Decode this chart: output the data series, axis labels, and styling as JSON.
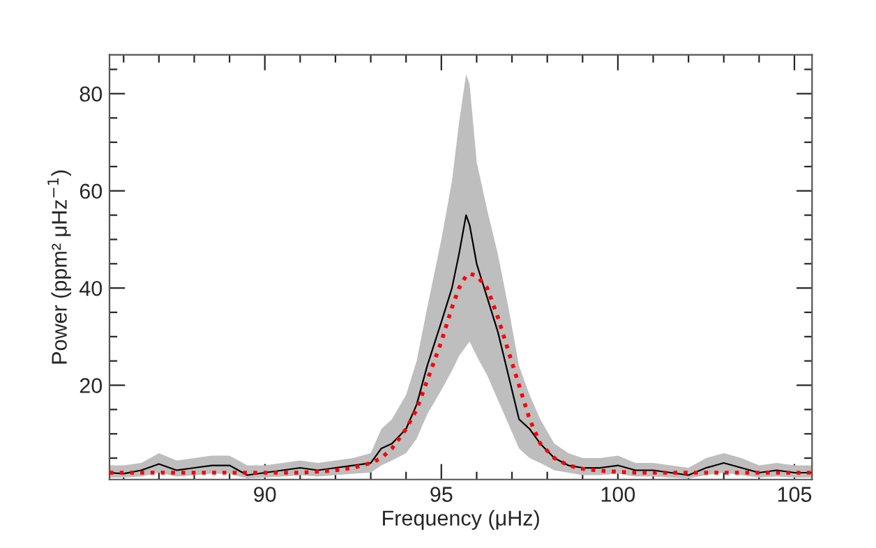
{
  "chart_data": {
    "type": "line",
    "xlabel": "Frequency (μHz)",
    "ylabel": "Power (ppm² μHz$^{−1}$)",
    "x": [
      85.6,
      86,
      86.5,
      87,
      87.5,
      88,
      88.5,
      89,
      89.5,
      90,
      90.5,
      91,
      91.5,
      92,
      92.5,
      93,
      93.3,
      93.6,
      94,
      94.3,
      94.6,
      95,
      95.3,
      95.5,
      95.7,
      95.8,
      96,
      96.3,
      96.6,
      96.9,
      97.2,
      97.5,
      97.8,
      98.2,
      98.6,
      99,
      99.5,
      100,
      100.5,
      101,
      101.5,
      102,
      102.5,
      103,
      103.5,
      104,
      104.5,
      105,
      105.5
    ],
    "series": [
      {
        "color": "#000000",
        "line_style": "solid",
        "values": [
          2,
          1.8,
          2.5,
          3.8,
          2.5,
          3,
          3.5,
          3.5,
          1.5,
          2,
          2.5,
          3,
          2.5,
          3,
          3.5,
          4,
          7,
          8,
          11,
          16,
          24,
          33,
          40,
          47,
          55,
          53,
          45,
          38,
          31,
          22,
          13,
          11,
          8,
          5,
          3.5,
          3,
          3,
          3.5,
          2.5,
          2.5,
          2,
          1.5,
          3,
          4,
          3,
          2,
          2.5,
          2,
          2
        ],
        "upper": [
          3.5,
          3.5,
          4,
          6,
          4.5,
          5,
          5.5,
          5.5,
          3.5,
          3.5,
          4,
          4.5,
          4,
          4.5,
          5,
          6,
          11,
          13,
          18,
          25,
          36,
          50,
          62,
          74,
          84,
          82,
          66,
          56,
          47,
          36,
          24,
          18,
          13,
          8,
          6,
          5,
          5,
          5.5,
          4,
          4,
          3.5,
          3,
          5,
          6,
          5,
          3.5,
          4,
          3.5,
          3.5
        ],
        "lower": [
          1,
          1,
          1.2,
          2,
          1.2,
          1.5,
          1.8,
          1.8,
          0.8,
          1,
          1.2,
          1.5,
          1.2,
          1.5,
          1.8,
          2,
          3.5,
          4.5,
          6,
          9,
          14,
          19,
          23,
          26,
          28,
          29,
          26,
          22,
          17,
          12,
          7,
          5,
          4,
          2.5,
          2,
          1.5,
          1.5,
          1.8,
          1.2,
          1.2,
          1,
          0.8,
          1.5,
          2,
          1.5,
          1,
          1.2,
          1,
          1
        ]
      },
      {
        "color": "#ff0000",
        "line_style": "dotted",
        "values": [
          2,
          2,
          2,
          2,
          2,
          2,
          2,
          2,
          2,
          2,
          2,
          2,
          2.2,
          2.5,
          3,
          4,
          5,
          7,
          11,
          15,
          21,
          29,
          36,
          40,
          42.5,
          43,
          42.5,
          40,
          34,
          27,
          20,
          13,
          8,
          5,
          3.5,
          2.8,
          2.4,
          2.2,
          2,
          2,
          2,
          2,
          2,
          2,
          2,
          2,
          2,
          2,
          2
        ]
      }
    ],
    "xlim": [
      85.6,
      105.5
    ],
    "ylim": [
      0.6,
      88
    ],
    "xticks": [
      {
        "value": 86,
        "label": null
      },
      {
        "value": 87,
        "label": null
      },
      {
        "value": 88,
        "label": null
      },
      {
        "value": 89,
        "label": null
      },
      90,
      {
        "value": 91,
        "label": null
      },
      {
        "value": 92,
        "label": null
      },
      {
        "value": 93,
        "label": null
      },
      {
        "value": 94,
        "label": null
      },
      95,
      {
        "value": 96,
        "label": null
      },
      {
        "value": 97,
        "label": null
      },
      {
        "value": 98,
        "label": null
      },
      {
        "value": 99,
        "label": null
      },
      100,
      {
        "value": 101,
        "label": null
      },
      {
        "value": 102,
        "label": null
      },
      {
        "value": 103,
        "label": null
      },
      {
        "value": 104,
        "label": null
      },
      105
    ],
    "yticks": [
      {
        "value": 5,
        "label": null
      },
      {
        "value": 10,
        "label": null
      },
      {
        "value": 15,
        "label": null
      },
      20,
      {
        "value": 25,
        "label": null
      },
      {
        "value": 30,
        "label": null
      },
      {
        "value": 35,
        "label": null
      },
      40,
      {
        "value": 45,
        "label": null
      },
      {
        "value": 50,
        "label": null
      },
      {
        "value": 55,
        "label": null
      },
      60,
      {
        "value": 65,
        "label": null
      },
      {
        "value": 70,
        "label": null
      },
      {
        "value": 75,
        "label": null
      },
      80,
      {
        "value": 85,
        "label": null
      }
    ],
    "grid": false,
    "legend": false
  }
}
